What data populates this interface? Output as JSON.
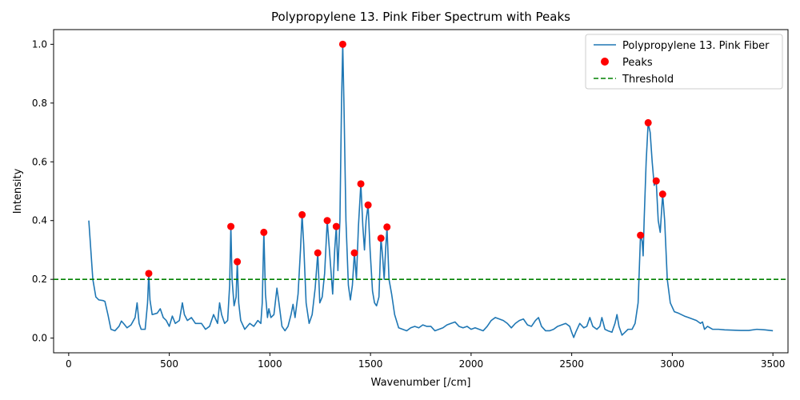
{
  "chart_data": {
    "type": "line",
    "title": "Polypropylene 13. Pink Fiber Spectrum with Peaks",
    "xlabel": "Wavenumber [/cm]",
    "ylabel": "Intensity",
    "xlim": [
      -75,
      3575
    ],
    "ylim": [
      -0.05,
      1.05
    ],
    "xticks": [
      0,
      500,
      1000,
      1500,
      2000,
      2500,
      3000,
      3500
    ],
    "yticks": [
      0.0,
      0.2,
      0.4,
      0.6,
      0.8,
      1.0
    ],
    "grid": false,
    "legend_position": "top-right",
    "colors": {
      "spectrum": "#1f77b4",
      "peaks": "#ff0000",
      "threshold": "#008000"
    },
    "series": [
      {
        "name": "Polypropylene 13. Pink Fiber",
        "style": "line",
        "points": [
          [
            100,
            0.4
          ],
          [
            110,
            0.3
          ],
          [
            120,
            0.2
          ],
          [
            135,
            0.14
          ],
          [
            150,
            0.13
          ],
          [
            170,
            0.128
          ],
          [
            180,
            0.125
          ],
          [
            195,
            0.08
          ],
          [
            210,
            0.03
          ],
          [
            230,
            0.025
          ],
          [
            250,
            0.04
          ],
          [
            262,
            0.058
          ],
          [
            275,
            0.048
          ],
          [
            290,
            0.035
          ],
          [
            310,
            0.045
          ],
          [
            330,
            0.07
          ],
          [
            340,
            0.12
          ],
          [
            350,
            0.05
          ],
          [
            360,
            0.03
          ],
          [
            380,
            0.03
          ],
          [
            392,
            0.12
          ],
          [
            398,
            0.22
          ],
          [
            404,
            0.13
          ],
          [
            415,
            0.08
          ],
          [
            440,
            0.085
          ],
          [
            455,
            0.1
          ],
          [
            470,
            0.07
          ],
          [
            485,
            0.06
          ],
          [
            500,
            0.04
          ],
          [
            515,
            0.075
          ],
          [
            530,
            0.05
          ],
          [
            550,
            0.06
          ],
          [
            565,
            0.12
          ],
          [
            575,
            0.08
          ],
          [
            590,
            0.06
          ],
          [
            610,
            0.07
          ],
          [
            630,
            0.05
          ],
          [
            660,
            0.05
          ],
          [
            680,
            0.03
          ],
          [
            700,
            0.04
          ],
          [
            720,
            0.08
          ],
          [
            740,
            0.05
          ],
          [
            750,
            0.12
          ],
          [
            760,
            0.08
          ],
          [
            775,
            0.05
          ],
          [
            790,
            0.06
          ],
          [
            800,
            0.18
          ],
          [
            806,
            0.38
          ],
          [
            812,
            0.2
          ],
          [
            822,
            0.11
          ],
          [
            832,
            0.14
          ],
          [
            838,
            0.26
          ],
          [
            845,
            0.12
          ],
          [
            855,
            0.06
          ],
          [
            875,
            0.03
          ],
          [
            900,
            0.05
          ],
          [
            920,
            0.04
          ],
          [
            940,
            0.06
          ],
          [
            955,
            0.05
          ],
          [
            962,
            0.12
          ],
          [
            970,
            0.36
          ],
          [
            978,
            0.15
          ],
          [
            988,
            0.07
          ],
          [
            995,
            0.1
          ],
          [
            1005,
            0.07
          ],
          [
            1020,
            0.08
          ],
          [
            1035,
            0.17
          ],
          [
            1045,
            0.12
          ],
          [
            1060,
            0.04
          ],
          [
            1075,
            0.025
          ],
          [
            1090,
            0.04
          ],
          [
            1105,
            0.08
          ],
          [
            1115,
            0.115
          ],
          [
            1125,
            0.07
          ],
          [
            1140,
            0.15
          ],
          [
            1152,
            0.3
          ],
          [
            1160,
            0.42
          ],
          [
            1168,
            0.32
          ],
          [
            1180,
            0.12
          ],
          [
            1195,
            0.05
          ],
          [
            1210,
            0.08
          ],
          [
            1225,
            0.17
          ],
          [
            1238,
            0.29
          ],
          [
            1248,
            0.12
          ],
          [
            1260,
            0.14
          ],
          [
            1272,
            0.22
          ],
          [
            1285,
            0.4
          ],
          [
            1298,
            0.28
          ],
          [
            1312,
            0.15
          ],
          [
            1322,
            0.3
          ],
          [
            1330,
            0.38
          ],
          [
            1338,
            0.23
          ],
          [
            1348,
            0.4
          ],
          [
            1356,
            0.8
          ],
          [
            1362,
            1.0
          ],
          [
            1368,
            0.8
          ],
          [
            1378,
            0.4
          ],
          [
            1390,
            0.18
          ],
          [
            1400,
            0.13
          ],
          [
            1410,
            0.18
          ],
          [
            1420,
            0.29
          ],
          [
            1430,
            0.2
          ],
          [
            1440,
            0.38
          ],
          [
            1452,
            0.525
          ],
          [
            1462,
            0.38
          ],
          [
            1470,
            0.3
          ],
          [
            1478,
            0.4
          ],
          [
            1488,
            0.453
          ],
          [
            1498,
            0.3
          ],
          [
            1510,
            0.16
          ],
          [
            1520,
            0.12
          ],
          [
            1530,
            0.11
          ],
          [
            1542,
            0.14
          ],
          [
            1552,
            0.34
          ],
          [
            1560,
            0.28
          ],
          [
            1568,
            0.2
          ],
          [
            1575,
            0.3
          ],
          [
            1582,
            0.378
          ],
          [
            1592,
            0.2
          ],
          [
            1605,
            0.15
          ],
          [
            1620,
            0.08
          ],
          [
            1640,
            0.035
          ],
          [
            1660,
            0.03
          ],
          [
            1680,
            0.025
          ],
          [
            1700,
            0.035
          ],
          [
            1720,
            0.04
          ],
          [
            1740,
            0.035
          ],
          [
            1760,
            0.045
          ],
          [
            1780,
            0.04
          ],
          [
            1800,
            0.04
          ],
          [
            1820,
            0.025
          ],
          [
            1840,
            0.03
          ],
          [
            1860,
            0.035
          ],
          [
            1880,
            0.045
          ],
          [
            1900,
            0.05
          ],
          [
            1920,
            0.055
          ],
          [
            1940,
            0.04
          ],
          [
            1960,
            0.035
          ],
          [
            1980,
            0.04
          ],
          [
            2000,
            0.03
          ],
          [
            2020,
            0.035
          ],
          [
            2040,
            0.03
          ],
          [
            2060,
            0.025
          ],
          [
            2080,
            0.04
          ],
          [
            2100,
            0.06
          ],
          [
            2120,
            0.07
          ],
          [
            2140,
            0.065
          ],
          [
            2160,
            0.06
          ],
          [
            2180,
            0.05
          ],
          [
            2200,
            0.035
          ],
          [
            2220,
            0.05
          ],
          [
            2240,
            0.06
          ],
          [
            2260,
            0.065
          ],
          [
            2280,
            0.045
          ],
          [
            2300,
            0.04
          ],
          [
            2320,
            0.06
          ],
          [
            2335,
            0.07
          ],
          [
            2350,
            0.04
          ],
          [
            2370,
            0.025
          ],
          [
            2390,
            0.025
          ],
          [
            2410,
            0.03
          ],
          [
            2430,
            0.04
          ],
          [
            2450,
            0.045
          ],
          [
            2470,
            0.05
          ],
          [
            2490,
            0.04
          ],
          [
            2500,
            0.02
          ],
          [
            2510,
            0.002
          ],
          [
            2520,
            0.02
          ],
          [
            2540,
            0.05
          ],
          [
            2560,
            0.035
          ],
          [
            2575,
            0.04
          ],
          [
            2590,
            0.07
          ],
          [
            2605,
            0.04
          ],
          [
            2625,
            0.03
          ],
          [
            2640,
            0.04
          ],
          [
            2650,
            0.07
          ],
          [
            2665,
            0.03
          ],
          [
            2680,
            0.025
          ],
          [
            2700,
            0.02
          ],
          [
            2715,
            0.05
          ],
          [
            2725,
            0.08
          ],
          [
            2735,
            0.04
          ],
          [
            2750,
            0.01
          ],
          [
            2765,
            0.02
          ],
          [
            2780,
            0.03
          ],
          [
            2800,
            0.03
          ],
          [
            2815,
            0.05
          ],
          [
            2830,
            0.12
          ],
          [
            2842,
            0.35
          ],
          [
            2850,
            0.33
          ],
          [
            2855,
            0.28
          ],
          [
            2860,
            0.4
          ],
          [
            2870,
            0.6
          ],
          [
            2880,
            0.733
          ],
          [
            2890,
            0.7
          ],
          [
            2900,
            0.6
          ],
          [
            2910,
            0.52
          ],
          [
            2920,
            0.535
          ],
          [
            2930,
            0.4
          ],
          [
            2940,
            0.36
          ],
          [
            2952,
            0.49
          ],
          [
            2962,
            0.4
          ],
          [
            2975,
            0.2
          ],
          [
            2990,
            0.12
          ],
          [
            3010,
            0.09
          ],
          [
            3030,
            0.085
          ],
          [
            3060,
            0.075
          ],
          [
            3080,
            0.07
          ],
          [
            3100,
            0.065
          ],
          [
            3120,
            0.06
          ],
          [
            3140,
            0.05
          ],
          [
            3150,
            0.055
          ],
          [
            3160,
            0.03
          ],
          [
            3175,
            0.04
          ],
          [
            3200,
            0.03
          ],
          [
            3230,
            0.03
          ],
          [
            3260,
            0.028
          ],
          [
            3300,
            0.027
          ],
          [
            3340,
            0.026
          ],
          [
            3380,
            0.026
          ],
          [
            3420,
            0.03
          ],
          [
            3460,
            0.028
          ],
          [
            3500,
            0.025
          ]
        ]
      },
      {
        "name": "Peaks",
        "style": "scatter",
        "points": [
          [
            398,
            0.22
          ],
          [
            806,
            0.38
          ],
          [
            838,
            0.26
          ],
          [
            970,
            0.36
          ],
          [
            1160,
            0.42
          ],
          [
            1238,
            0.29
          ],
          [
            1285,
            0.4
          ],
          [
            1330,
            0.38
          ],
          [
            1362,
            1.0
          ],
          [
            1420,
            0.29
          ],
          [
            1452,
            0.525
          ],
          [
            1488,
            0.453
          ],
          [
            1552,
            0.34
          ],
          [
            1582,
            0.378
          ],
          [
            2842,
            0.35
          ],
          [
            2880,
            0.733
          ],
          [
            2920,
            0.535
          ],
          [
            2952,
            0.49
          ]
        ]
      },
      {
        "name": "Threshold",
        "style": "hline",
        "y": 0.2
      }
    ]
  }
}
